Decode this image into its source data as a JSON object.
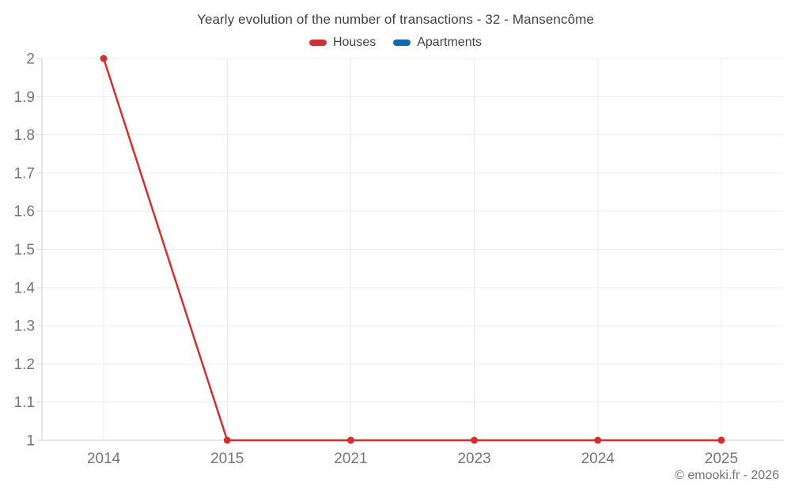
{
  "chart_data": {
    "type": "line",
    "title": "Yearly evolution of the number of transactions - 32 - Mansencôme",
    "categories": [
      "2014",
      "2015",
      "2021",
      "2023",
      "2024",
      "2025"
    ],
    "series": [
      {
        "name": "Houses",
        "color": "#d32f2f",
        "values": [
          2,
          1,
          1,
          1,
          1,
          1
        ]
      },
      {
        "name": "Apartments",
        "color": "#0d6ba8",
        "values": []
      }
    ],
    "ylim": [
      1,
      2
    ],
    "yticks": [
      "2",
      "1.9",
      "1.8",
      "1.7",
      "1.6",
      "1.5",
      "1.4",
      "1.3",
      "1.2",
      "1.1",
      "1"
    ],
    "xlabel": "",
    "ylabel": "",
    "grid": true,
    "legend_position": "top"
  },
  "legend": {
    "items": [
      {
        "label": "Houses",
        "color": "#d32f2f"
      },
      {
        "label": "Apartments",
        "color": "#0d6ba8"
      }
    ]
  },
  "footer": {
    "text": "© emooki.fr - 2026"
  },
  "colors": {
    "background": "#ffffff",
    "grid": "#ebebeb",
    "axis": "#cccccc",
    "tick": "#d9d9d9",
    "tick_label": "#757575",
    "title_text": "#424242"
  }
}
